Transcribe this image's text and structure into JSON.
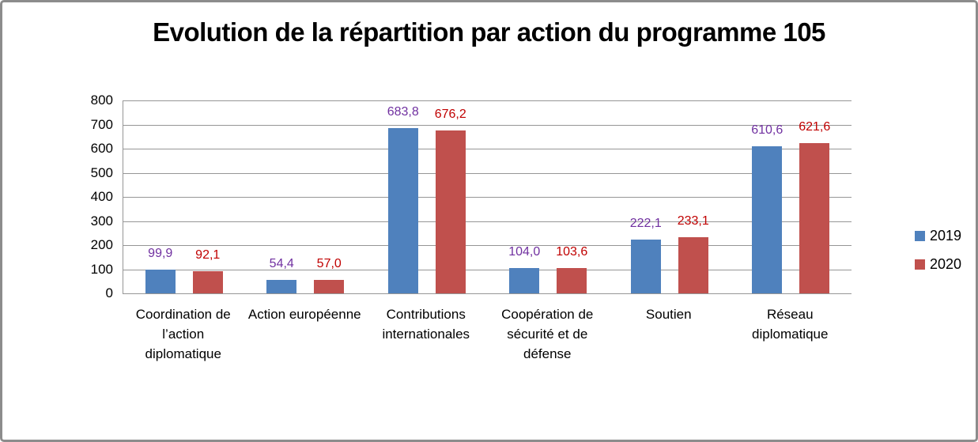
{
  "frame": {
    "border_color": "#8c8c8c",
    "background": "#ffffff"
  },
  "chart_data": {
    "type": "bar",
    "title": "Evolution de la répartition par action du programme 105",
    "categories": [
      "Coordination de l’action diplomatique",
      "Action européenne",
      "Contributions internationales",
      "Coopération de sécurité et de défense",
      "Soutien",
      "Réseau diplomatique"
    ],
    "series": [
      {
        "name": "2019",
        "values": [
          99.9,
          54.4,
          683.8,
          104.0,
          222.1,
          610.6
        ],
        "labels": [
          "99,9",
          "54,4",
          "683,8",
          "104,0",
          "222,1",
          "610,6"
        ],
        "color": "#4f81bd",
        "label_color": "#7030a0"
      },
      {
        "name": "2020",
        "values": [
          92.1,
          57.0,
          676.2,
          103.6,
          233.1,
          621.6
        ],
        "labels": [
          "92,1",
          "57,0",
          "676,2",
          "103,6",
          "233,1",
          "621,6"
        ],
        "color": "#c0504d",
        "label_color": "#c00000"
      }
    ],
    "xlabel": "",
    "ylabel": "",
    "ylim": [
      0,
      800
    ],
    "yticks": [
      0,
      100,
      200,
      300,
      400,
      500,
      600,
      700,
      800
    ],
    "grid": true,
    "grid_color": "#969696",
    "axis_color": "#969696",
    "legend_position": "right"
  }
}
